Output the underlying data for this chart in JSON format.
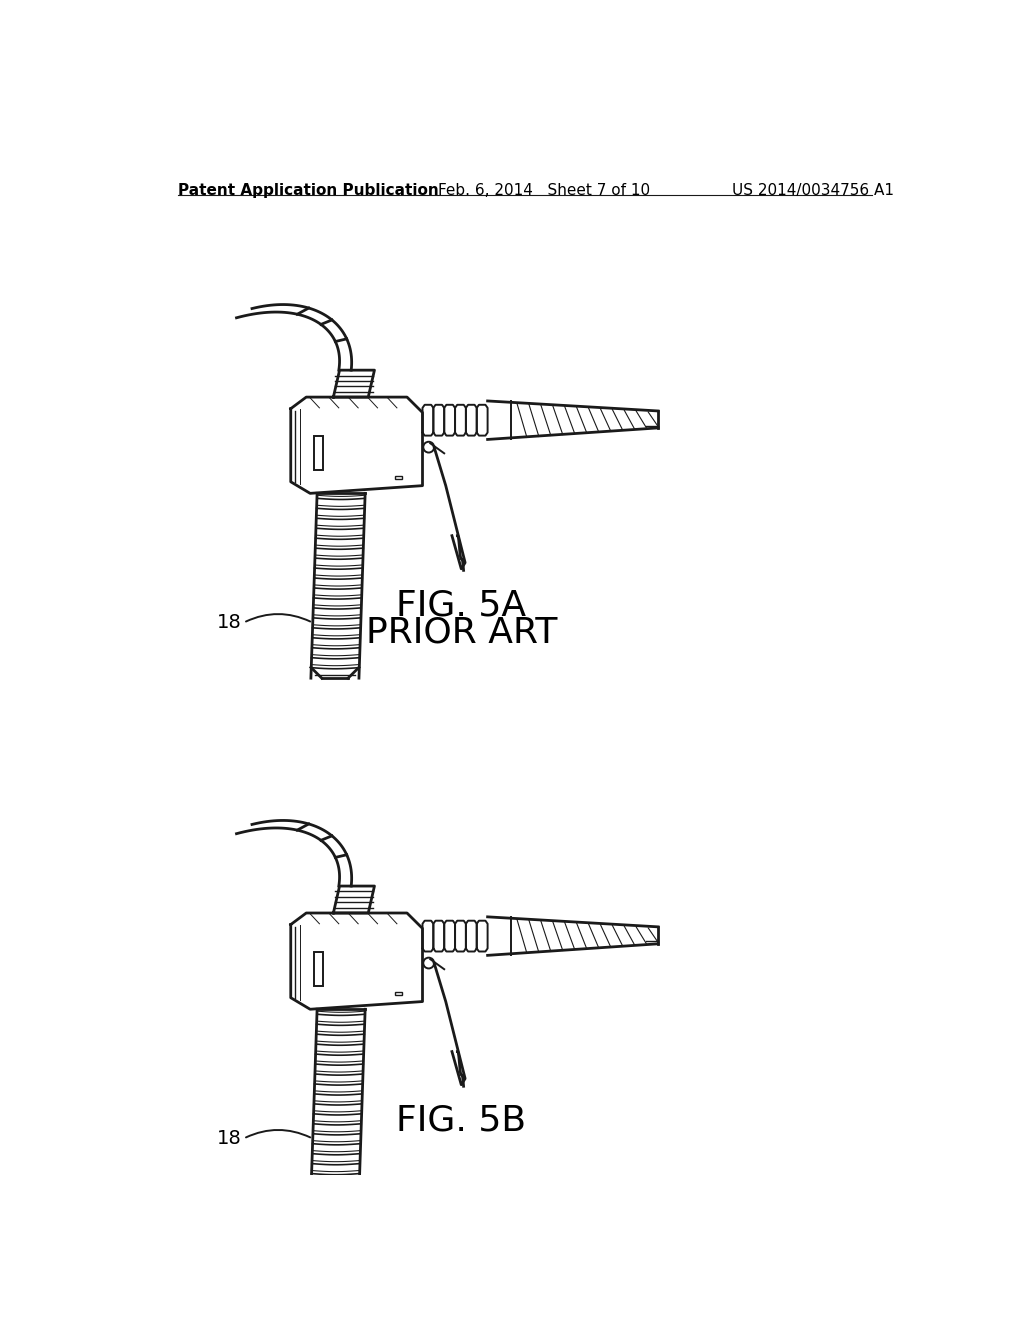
{
  "background_color": "#ffffff",
  "header_left": "Patent Application Publication",
  "header_mid": "Feb. 6, 2014   Sheet 7 of 10",
  "header_right": "US 2014/0034756 A1",
  "fig5a_label": "FIG. 5A",
  "fig5a_sublabel": "PRIOR ART",
  "fig5b_label": "FIG. 5B",
  "label_18": "18",
  "line_color": "#1a1a1a",
  "text_color": "#000000",
  "header_fontsize": 11,
  "figure_label_fontsize": 26,
  "sublabel_fontsize": 26
}
